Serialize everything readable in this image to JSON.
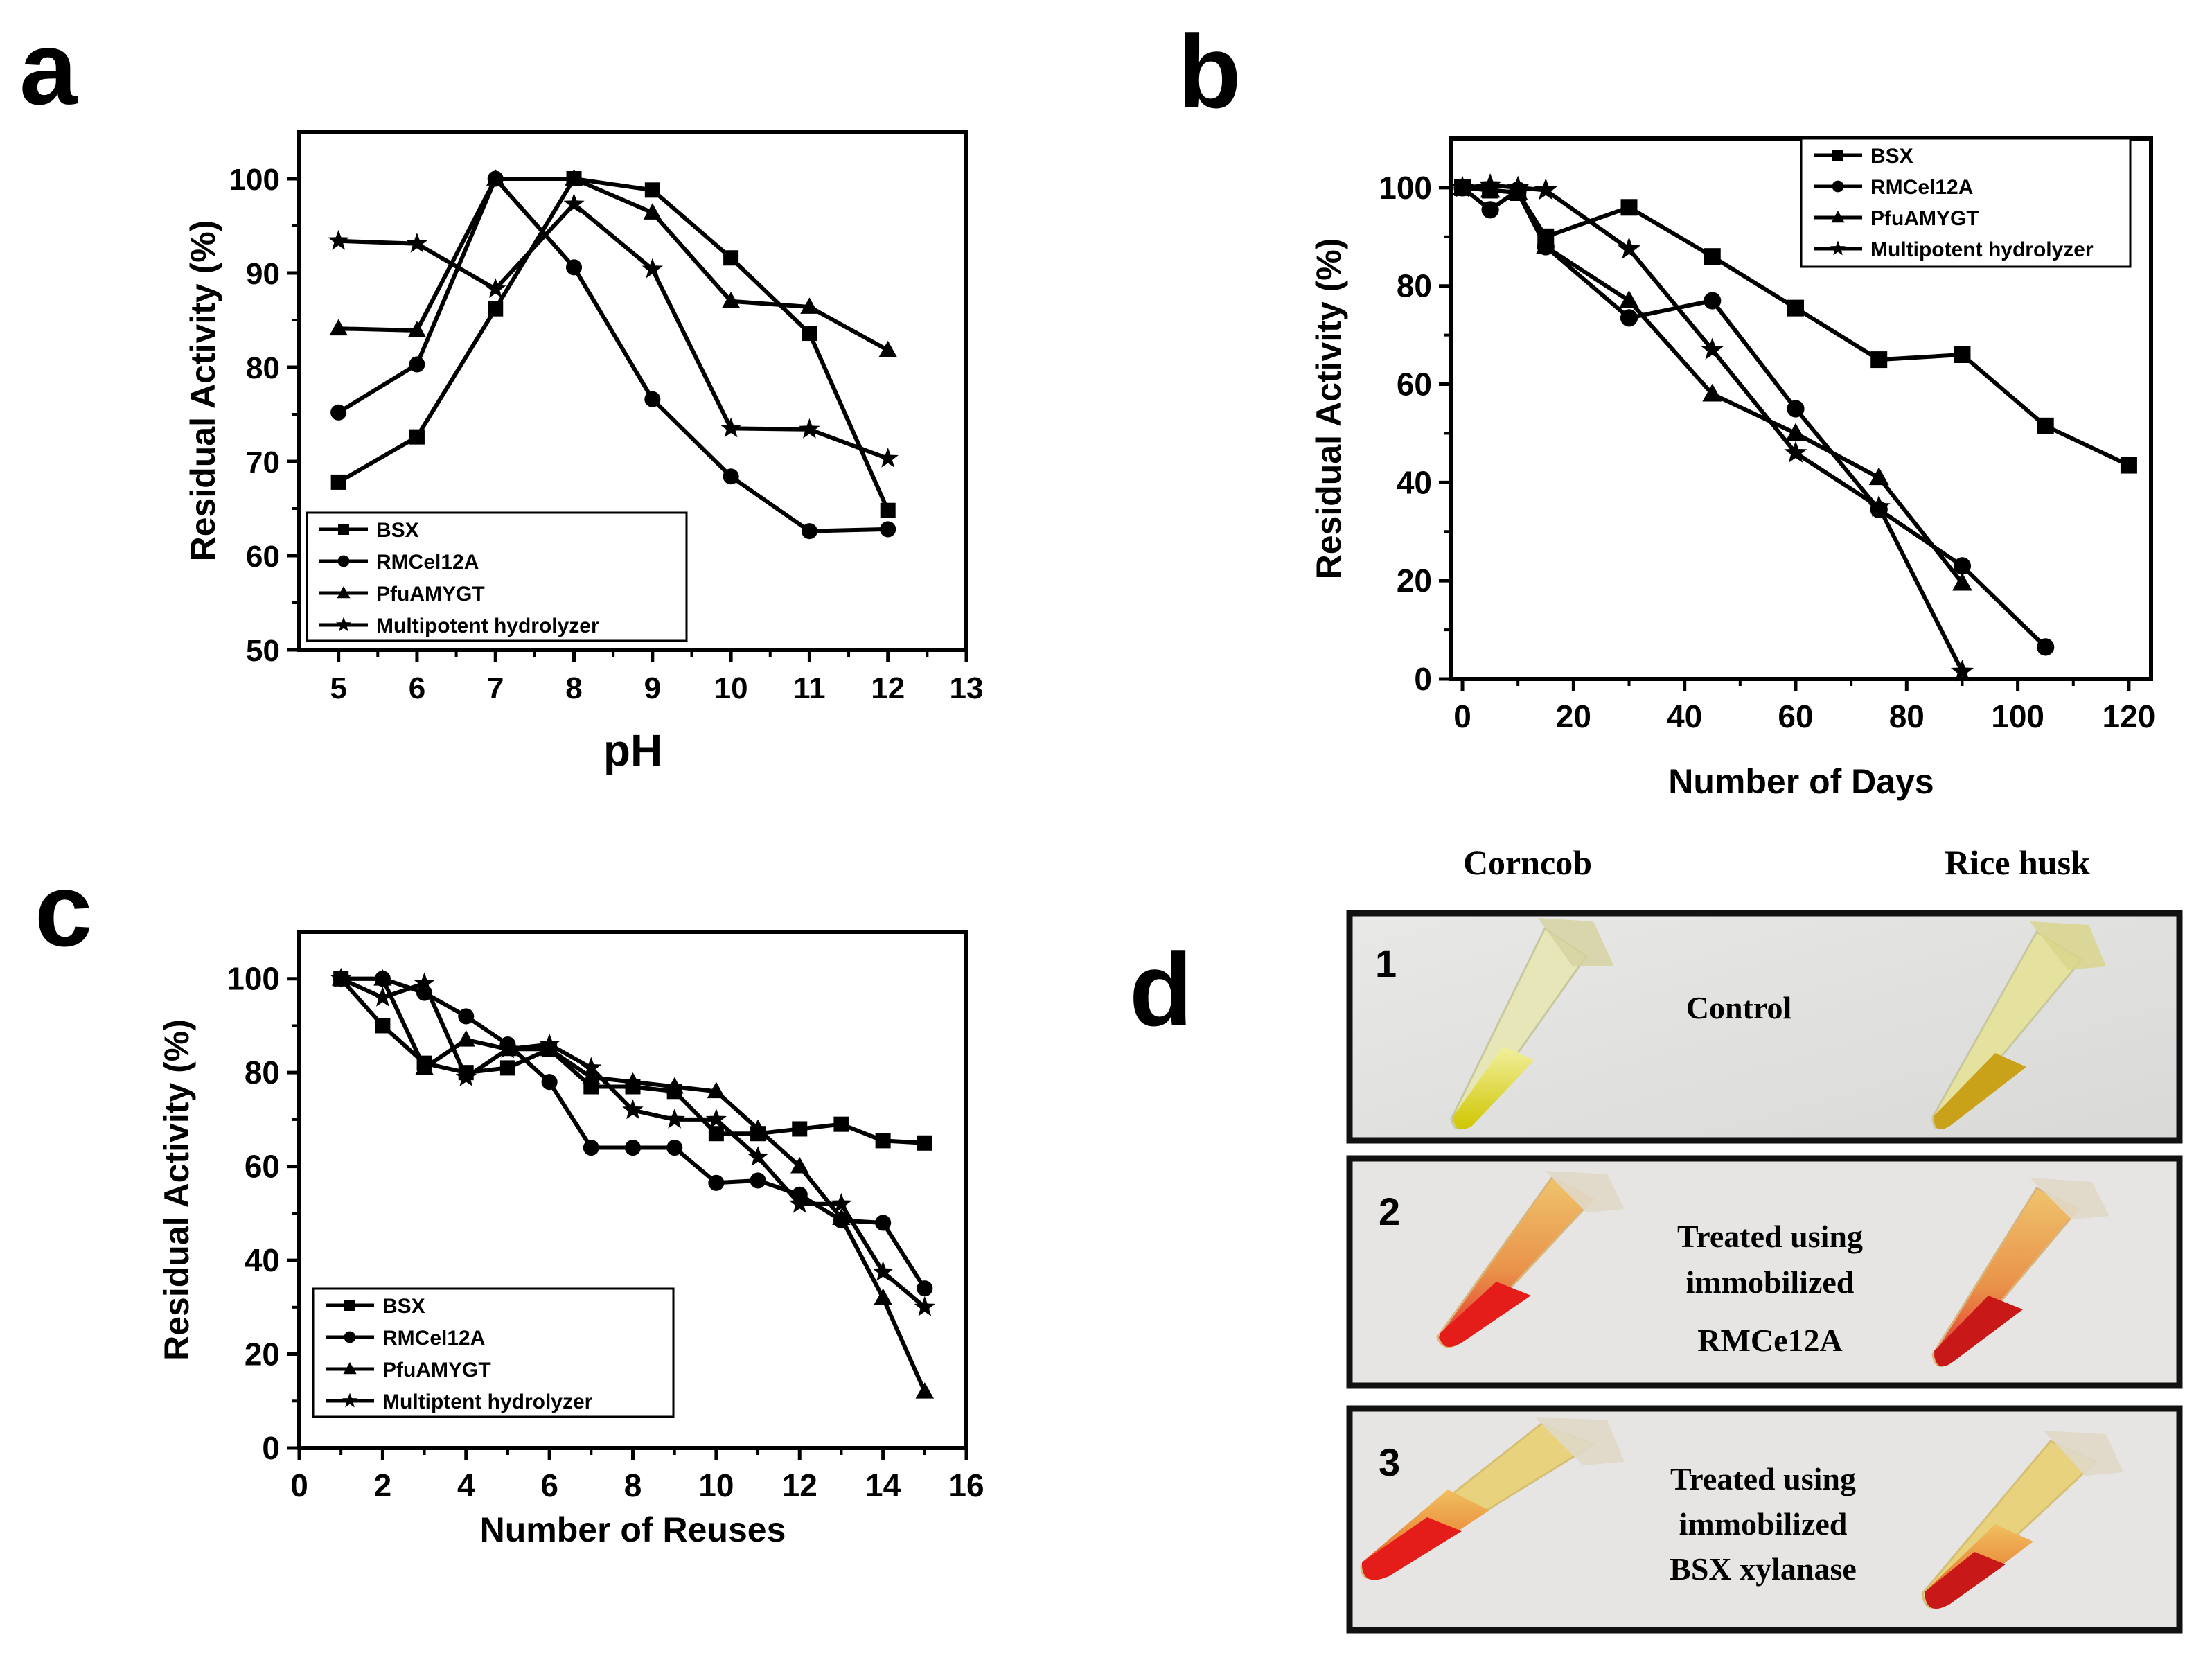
{
  "panel_letters": [
    "a",
    "b",
    "c",
    "d"
  ],
  "chart_data": [
    {
      "type": "line",
      "title": "",
      "xlabel": "pH",
      "ylabel": "Residual Activity (%)",
      "xlim": [
        4.5,
        13
      ],
      "ylim": [
        50,
        105
      ],
      "xticks": [
        5,
        6,
        7,
        8,
        9,
        10,
        11,
        12,
        13
      ],
      "yticks": [
        50,
        60,
        70,
        80,
        90,
        100
      ],
      "legend_position": "bottom-left",
      "series": [
        {
          "name": "BSX",
          "marker": "square",
          "x": [
            5,
            6,
            7,
            8,
            9,
            10,
            11,
            12
          ],
          "y": [
            67.8,
            72.6,
            86.2,
            100,
            98.8,
            91.6,
            83.6,
            64.8
          ]
        },
        {
          "name": "RMCel12A",
          "marker": "circle",
          "x": [
            5,
            6,
            7,
            8,
            9,
            10,
            11,
            12
          ],
          "y": [
            75.2,
            80.3,
            100,
            90.6,
            76.6,
            68.4,
            62.6,
            62.8
          ]
        },
        {
          "name": "PfuAMYGT",
          "marker": "triangle",
          "x": [
            5,
            6,
            7,
            8,
            9,
            10,
            11,
            12
          ],
          "y": [
            84.1,
            83.9,
            100,
            100,
            96.4,
            87,
            86.4,
            81.8
          ]
        },
        {
          "name": "Multipotent hydrolyzer",
          "marker": "star",
          "x": [
            5,
            6,
            7,
            8,
            9,
            10,
            11,
            12
          ],
          "y": [
            93.4,
            93.1,
            88.3,
            97.3,
            90.4,
            73.5,
            73.4,
            70.3
          ]
        }
      ]
    },
    {
      "type": "line",
      "title": "",
      "xlabel": "Number of Days",
      "ylabel": "Residual Activity (%)",
      "xlim": [
        -2,
        124
      ],
      "ylim": [
        0,
        110
      ],
      "xticks": [
        0,
        20,
        40,
        60,
        80,
        100,
        120
      ],
      "yticks": [
        0,
        20,
        40,
        60,
        80,
        100
      ],
      "legend_position": "top-right",
      "series": [
        {
          "name": "BSX",
          "marker": "square",
          "x": [
            0,
            5,
            10,
            15,
            30,
            45,
            60,
            75,
            90,
            105,
            120
          ],
          "y": [
            100,
            99.5,
            99,
            90,
            96,
            86,
            75.5,
            65,
            66,
            51.5,
            43.5
          ]
        },
        {
          "name": "RMCel12A",
          "marker": "circle",
          "x": [
            0,
            5,
            10,
            15,
            30,
            45,
            60,
            75,
            90,
            105
          ],
          "y": [
            100,
            95.5,
            99.5,
            88,
            73.5,
            77,
            55,
            34.5,
            23,
            6.5
          ]
        },
        {
          "name": "PfuAMYGT",
          "marker": "triangle",
          "x": [
            0,
            5,
            10,
            15,
            30,
            45,
            60,
            75,
            90
          ],
          "y": [
            100,
            99.5,
            99,
            88,
            77,
            58,
            50,
            41,
            19.5
          ]
        },
        {
          "name": "Multipotent hydrolyzer",
          "marker": "star",
          "x": [
            0,
            5,
            10,
            15,
            30,
            45,
            60,
            75,
            90
          ],
          "y": [
            100,
            100.5,
            100,
            99.5,
            87.5,
            67,
            46,
            35,
            1.5
          ]
        }
      ]
    },
    {
      "type": "line",
      "title": "",
      "xlabel": "Number of Reuses",
      "ylabel": "Residual Activity (%)",
      "xlim": [
        0,
        16
      ],
      "ylim": [
        0,
        110
      ],
      "xticks": [
        0,
        2,
        4,
        6,
        8,
        10,
        12,
        14,
        16
      ],
      "yticks": [
        0,
        20,
        40,
        60,
        80,
        100
      ],
      "legend_position": "bottom-left",
      "series": [
        {
          "name": "BSX",
          "marker": "square",
          "x": [
            1,
            2,
            3,
            4,
            5,
            6,
            7,
            8,
            9,
            10,
            11,
            12,
            13,
            14,
            15
          ],
          "y": [
            100,
            90,
            82,
            80,
            81,
            85,
            77,
            77,
            76,
            67,
            67,
            68,
            69,
            65.5,
            65
          ]
        },
        {
          "name": "RMCel12A",
          "marker": "circle",
          "x": [
            1,
            2,
            3,
            4,
            5,
            6,
            7,
            8,
            9,
            10,
            11,
            12,
            13,
            14,
            15
          ],
          "y": [
            100,
            100,
            97,
            92,
            86,
            78,
            64,
            64,
            64,
            56.5,
            57,
            54,
            48.5,
            48,
            34
          ]
        },
        {
          "name": "PfuAMYGT",
          "marker": "triangle",
          "x": [
            1,
            2,
            3,
            4,
            5,
            6,
            7,
            8,
            9,
            10,
            11,
            12,
            13,
            14,
            15
          ],
          "y": [
            100,
            100,
            81,
            87,
            85,
            85,
            79,
            78,
            77,
            76,
            68,
            60,
            49,
            32,
            12
          ]
        },
        {
          "name": "Multiptent hydrolyzer",
          "marker": "star",
          "x": [
            1,
            2,
            3,
            4,
            5,
            6,
            7,
            8,
            9,
            10,
            11,
            12,
            13,
            14,
            15
          ],
          "y": [
            100,
            96,
            99,
            79,
            85,
            86,
            81,
            72,
            70,
            70,
            62,
            52,
            52,
            37.5,
            30
          ]
        }
      ]
    }
  ],
  "photo_panel": {
    "column_labels": [
      "Corncob",
      "Rice husk"
    ],
    "rows": [
      {
        "number": "1",
        "caption_lines": [
          "Control"
        ]
      },
      {
        "number": "2",
        "caption_lines": [
          "Treated using",
          "immobilized",
          "RMCe12A"
        ]
      },
      {
        "number": "3",
        "caption_lines": [
          "Treated using",
          "immobilized",
          "BSX xylanase"
        ]
      }
    ],
    "colors": {
      "background": "#e4e4e2",
      "yellow": "#d8d400",
      "red": "#e8201c",
      "orange": "#e9a63a",
      "border": "#111111"
    }
  }
}
